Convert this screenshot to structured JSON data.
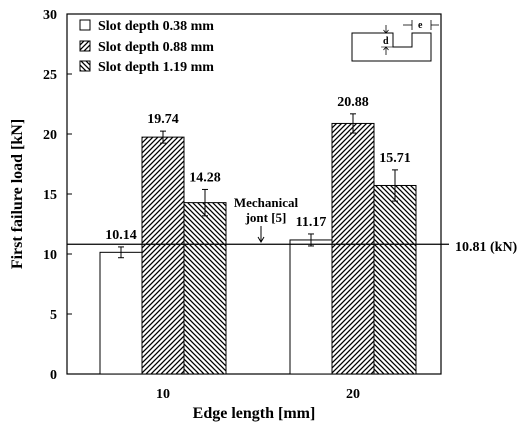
{
  "chart_data": {
    "type": "bar",
    "xlabel": "Edge length [mm]",
    "ylabel": "First failure load [kN]",
    "ylim": [
      0,
      30
    ],
    "yticks": [
      0,
      5,
      10,
      15,
      20,
      25,
      30
    ],
    "categories": [
      "10",
      "20"
    ],
    "grid": false,
    "legend_position": "top-left",
    "series": [
      {
        "name": "Slot depth 0.38 mm",
        "pattern": "blank",
        "values": [
          10.14,
          11.17
        ],
        "errors": [
          0.45,
          0.5
        ],
        "labels": [
          "10.14",
          "11.17"
        ]
      },
      {
        "name": "Slot depth 0.88 mm",
        "pattern": "forward-hatch",
        "values": [
          19.74,
          20.88
        ],
        "errors": [
          0.5,
          0.8
        ],
        "labels": [
          "19.74",
          "20.88"
        ]
      },
      {
        "name": "Slot depth 1.19 mm",
        "pattern": "backward-hatch",
        "values": [
          14.28,
          15.71
        ],
        "errors": [
          1.1,
          1.3
        ],
        "labels": [
          "14.28",
          "15.71"
        ]
      }
    ],
    "reference_line": {
      "value": 10.81,
      "label": "10.81 (kN)"
    },
    "annotation": {
      "line1": "Mechanical",
      "line2": "jont [5]"
    },
    "inset": {
      "d_label": "d",
      "e_label": "e"
    },
    "colors": {
      "bar_fill": "#ffffff",
      "stroke": "#000000"
    }
  }
}
